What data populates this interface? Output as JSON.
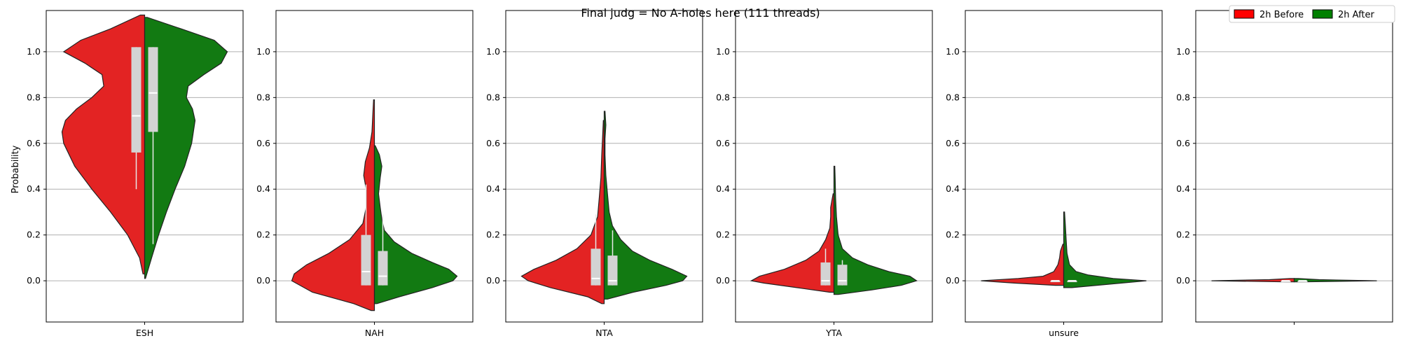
{
  "chart_data": {
    "type": "violin",
    "title": "Final judg = No A-holes here (111 threads)",
    "ylabel": "Probability",
    "ylim": [
      -0.18,
      1.18
    ],
    "yticks": [
      "0.0",
      "0.2",
      "0.4",
      "0.6",
      "0.8",
      "1.0"
    ],
    "grid": "horizontal",
    "legend": {
      "placement": "top-right",
      "entries": [
        {
          "label": "2h Before",
          "color": "#ff0000"
        },
        {
          "label": "2h After",
          "color": "#008000"
        }
      ]
    },
    "panels": [
      {
        "category": "ESH",
        "before": {
          "min": 0.03,
          "max": 1.16,
          "q1": 0.56,
          "median": 0.72,
          "q3": 1.02,
          "whisker_low": 0.4,
          "whisker_high": 1.02,
          "density": [
            [
              0.03,
              0.02
            ],
            [
              0.1,
              0.06
            ],
            [
              0.2,
              0.2
            ],
            [
              0.3,
              0.4
            ],
            [
              0.4,
              0.62
            ],
            [
              0.5,
              0.82
            ],
            [
              0.6,
              0.95
            ],
            [
              0.65,
              0.97
            ],
            [
              0.7,
              0.93
            ],
            [
              0.75,
              0.8
            ],
            [
              0.8,
              0.62
            ],
            [
              0.85,
              0.48
            ],
            [
              0.9,
              0.5
            ],
            [
              0.95,
              0.7
            ],
            [
              1.0,
              0.95
            ],
            [
              1.05,
              0.75
            ],
            [
              1.1,
              0.4
            ],
            [
              1.16,
              0.05
            ]
          ]
        },
        "after": {
          "min": 0.01,
          "max": 1.15,
          "q1": 0.65,
          "median": 0.82,
          "q3": 1.02,
          "whisker_low": 0.16,
          "whisker_high": 1.02,
          "density": [
            [
              0.01,
              0.01
            ],
            [
              0.1,
              0.08
            ],
            [
              0.2,
              0.16
            ],
            [
              0.3,
              0.25
            ],
            [
              0.4,
              0.35
            ],
            [
              0.5,
              0.46
            ],
            [
              0.6,
              0.54
            ],
            [
              0.7,
              0.58
            ],
            [
              0.75,
              0.55
            ],
            [
              0.8,
              0.48
            ],
            [
              0.85,
              0.5
            ],
            [
              0.9,
              0.68
            ],
            [
              0.95,
              0.88
            ],
            [
              1.0,
              0.95
            ],
            [
              1.05,
              0.8
            ],
            [
              1.1,
              0.42
            ],
            [
              1.15,
              0.03
            ]
          ]
        }
      },
      {
        "category": "NAH",
        "before": {
          "min": -0.13,
          "max": 0.79,
          "q1": -0.02,
          "median": 0.04,
          "q3": 0.2,
          "whisker_low": -0.02,
          "whisker_high": 0.42,
          "density": [
            [
              -0.13,
              0.04
            ],
            [
              -0.1,
              0.25
            ],
            [
              -0.05,
              0.75
            ],
            [
              0.0,
              1.0
            ],
            [
              0.03,
              0.97
            ],
            [
              0.07,
              0.82
            ],
            [
              0.12,
              0.55
            ],
            [
              0.18,
              0.3
            ],
            [
              0.25,
              0.14
            ],
            [
              0.32,
              0.1
            ],
            [
              0.4,
              0.1
            ],
            [
              0.46,
              0.13
            ],
            [
              0.52,
              0.11
            ],
            [
              0.58,
              0.06
            ],
            [
              0.65,
              0.03
            ],
            [
              0.72,
              0.02
            ],
            [
              0.79,
              0.01
            ]
          ]
        },
        "after": {
          "min": -0.1,
          "max": 0.59,
          "q1": -0.02,
          "median": 0.02,
          "q3": 0.13,
          "whisker_low": -0.02,
          "whisker_high": 0.29,
          "density": [
            [
              -0.1,
              0.03
            ],
            [
              -0.07,
              0.3
            ],
            [
              -0.03,
              0.7
            ],
            [
              0.0,
              0.95
            ],
            [
              0.02,
              1.0
            ],
            [
              0.05,
              0.9
            ],
            [
              0.08,
              0.7
            ],
            [
              0.12,
              0.45
            ],
            [
              0.17,
              0.24
            ],
            [
              0.22,
              0.12
            ],
            [
              0.27,
              0.09
            ],
            [
              0.32,
              0.07
            ],
            [
              0.38,
              0.05
            ],
            [
              0.45,
              0.07
            ],
            [
              0.5,
              0.09
            ],
            [
              0.55,
              0.06
            ],
            [
              0.59,
              0.01
            ]
          ]
        }
      },
      {
        "category": "NTA",
        "before": {
          "min": -0.1,
          "max": 0.7,
          "q1": -0.02,
          "median": 0.01,
          "q3": 0.14,
          "whisker_low": -0.02,
          "whisker_high": 0.29,
          "density": [
            [
              -0.1,
              0.03
            ],
            [
              -0.07,
              0.2
            ],
            [
              -0.03,
              0.65
            ],
            [
              0.0,
              0.92
            ],
            [
              0.02,
              1.0
            ],
            [
              0.05,
              0.85
            ],
            [
              0.09,
              0.58
            ],
            [
              0.14,
              0.33
            ],
            [
              0.2,
              0.16
            ],
            [
              0.28,
              0.08
            ],
            [
              0.36,
              0.06
            ],
            [
              0.45,
              0.04
            ],
            [
              0.55,
              0.03
            ],
            [
              0.62,
              0.02
            ],
            [
              0.7,
              0.01
            ]
          ]
        },
        "after": {
          "min": -0.08,
          "max": 0.74,
          "q1": -0.02,
          "median": 0.0,
          "q3": 0.11,
          "whisker_low": -0.02,
          "whisker_high": 0.22,
          "density": [
            [
              -0.08,
              0.04
            ],
            [
              -0.05,
              0.35
            ],
            [
              -0.02,
              0.75
            ],
            [
              0.0,
              0.95
            ],
            [
              0.02,
              1.0
            ],
            [
              0.05,
              0.82
            ],
            [
              0.09,
              0.55
            ],
            [
              0.13,
              0.34
            ],
            [
              0.18,
              0.2
            ],
            [
              0.24,
              0.1
            ],
            [
              0.3,
              0.06
            ],
            [
              0.38,
              0.04
            ],
            [
              0.46,
              0.02
            ],
            [
              0.55,
              0.01
            ],
            [
              0.62,
              0.01
            ],
            [
              0.68,
              0.02
            ],
            [
              0.74,
              0.01
            ]
          ]
        }
      },
      {
        "category": "YTA",
        "before": {
          "min": -0.05,
          "max": 0.38,
          "q1": -0.02,
          "median": 0.0,
          "q3": 0.08,
          "whisker_low": -0.02,
          "whisker_high": 0.14,
          "density": [
            [
              -0.05,
              0.05
            ],
            [
              -0.03,
              0.45
            ],
            [
              -0.01,
              0.85
            ],
            [
              0.0,
              1.0
            ],
            [
              0.02,
              0.9
            ],
            [
              0.05,
              0.6
            ],
            [
              0.09,
              0.34
            ],
            [
              0.13,
              0.18
            ],
            [
              0.18,
              0.1
            ],
            [
              0.23,
              0.05
            ],
            [
              0.28,
              0.04
            ],
            [
              0.32,
              0.04
            ],
            [
              0.36,
              0.02
            ],
            [
              0.38,
              0.01
            ]
          ]
        },
        "after": {
          "min": -0.06,
          "max": 0.5,
          "q1": -0.02,
          "median": 0.0,
          "q3": 0.07,
          "whisker_low": -0.02,
          "whisker_high": 0.09,
          "density": [
            [
              -0.06,
              0.05
            ],
            [
              -0.04,
              0.45
            ],
            [
              -0.02,
              0.8
            ],
            [
              0.0,
              0.98
            ],
            [
              0.02,
              0.9
            ],
            [
              0.04,
              0.65
            ],
            [
              0.07,
              0.4
            ],
            [
              0.1,
              0.22
            ],
            [
              0.14,
              0.1
            ],
            [
              0.2,
              0.05
            ],
            [
              0.28,
              0.03
            ],
            [
              0.36,
              0.02
            ],
            [
              0.44,
              0.015
            ],
            [
              0.5,
              0.01
            ]
          ]
        }
      },
      {
        "category": "unsure",
        "before": {
          "min": -0.02,
          "max": 0.16,
          "q1": 0.0,
          "median": 0.0,
          "q3": 0.0,
          "whisker_low": 0.0,
          "whisker_high": 0.0,
          "density": [
            [
              -0.02,
              0.1
            ],
            [
              -0.01,
              0.6
            ],
            [
              0.0,
              1.0
            ],
            [
              0.01,
              0.55
            ],
            [
              0.02,
              0.25
            ],
            [
              0.04,
              0.12
            ],
            [
              0.07,
              0.07
            ],
            [
              0.1,
              0.05
            ],
            [
              0.13,
              0.04
            ],
            [
              0.16,
              0.01
            ]
          ]
        },
        "after": {
          "min": -0.03,
          "max": 0.3,
          "q1": 0.0,
          "median": 0.0,
          "q3": 0.0,
          "whisker_low": 0.0,
          "whisker_high": 0.0,
          "density": [
            [
              -0.03,
              0.1
            ],
            [
              -0.015,
              0.55
            ],
            [
              0.0,
              1.0
            ],
            [
              0.01,
              0.6
            ],
            [
              0.025,
              0.3
            ],
            [
              0.04,
              0.15
            ],
            [
              0.07,
              0.07
            ],
            [
              0.12,
              0.04
            ],
            [
              0.18,
              0.03
            ],
            [
              0.24,
              0.02
            ],
            [
              0.3,
              0.01
            ]
          ]
        }
      },
      {
        "category": "",
        "before": {
          "min": 0.0,
          "max": 0.01,
          "q1": 0.0,
          "median": 0.0,
          "q3": 0.0,
          "whisker_low": 0.0,
          "whisker_high": 0.0,
          "density": [
            [
              -0.005,
              0.1
            ],
            [
              0.0,
              1.0
            ],
            [
              0.005,
              0.3
            ],
            [
              0.01,
              0.05
            ]
          ]
        },
        "after": {
          "min": 0.0,
          "max": 0.01,
          "q1": 0.0,
          "median": 0.0,
          "q3": 0.0,
          "whisker_low": 0.0,
          "whisker_high": 0.0,
          "density": [
            [
              -0.005,
              0.1
            ],
            [
              0.0,
              1.0
            ],
            [
              0.005,
              0.3
            ],
            [
              0.01,
              0.05
            ]
          ]
        }
      }
    ]
  }
}
